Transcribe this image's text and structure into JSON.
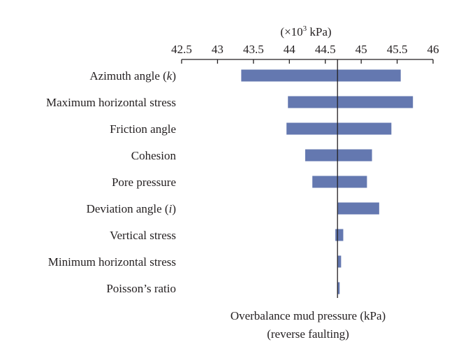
{
  "chart_data": {
    "type": "bar",
    "orientation": "horizontal-tornado",
    "axis_unit": {
      "prefix": "(×10",
      "exponent": "3",
      "suffix": " kPa)"
    },
    "x_ticks": [
      "42.5",
      "43",
      "43.5",
      "44",
      "44.5",
      "45",
      "45.5",
      "46"
    ],
    "xlim": [
      42.5,
      46
    ],
    "baseline": 44.67,
    "xlabel": [
      "Overbalance mud pressure (kPa)",
      "(reverse faulting)"
    ],
    "grid": false,
    "categories": [
      {
        "pre": "Azimuth angle (",
        "var": "k",
        "post": ")"
      },
      {
        "pre": "Maximum horizontal stress",
        "var": "",
        "post": ""
      },
      {
        "pre": "Friction angle",
        "var": "",
        "post": ""
      },
      {
        "pre": "Cohesion",
        "var": "",
        "post": ""
      },
      {
        "pre": "Pore pressure",
        "var": "",
        "post": ""
      },
      {
        "pre": "Deviation angle (",
        "var": "i",
        "post": ")"
      },
      {
        "pre": "Vertical stress",
        "var": "",
        "post": ""
      },
      {
        "pre": "Minimum horizontal stress",
        "var": "",
        "post": ""
      },
      {
        "pre": "Poisson’s ratio",
        "var": "",
        "post": ""
      }
    ],
    "ranges": [
      [
        43.33,
        45.55
      ],
      [
        43.98,
        45.72
      ],
      [
        43.96,
        45.42
      ],
      [
        44.22,
        45.15
      ],
      [
        44.32,
        45.08
      ],
      [
        44.67,
        45.25
      ],
      [
        44.64,
        44.75
      ],
      [
        44.67,
        44.72
      ],
      [
        44.67,
        44.7
      ]
    ],
    "colors": {
      "bar": "#6478b0",
      "axis": "#231f20"
    }
  }
}
